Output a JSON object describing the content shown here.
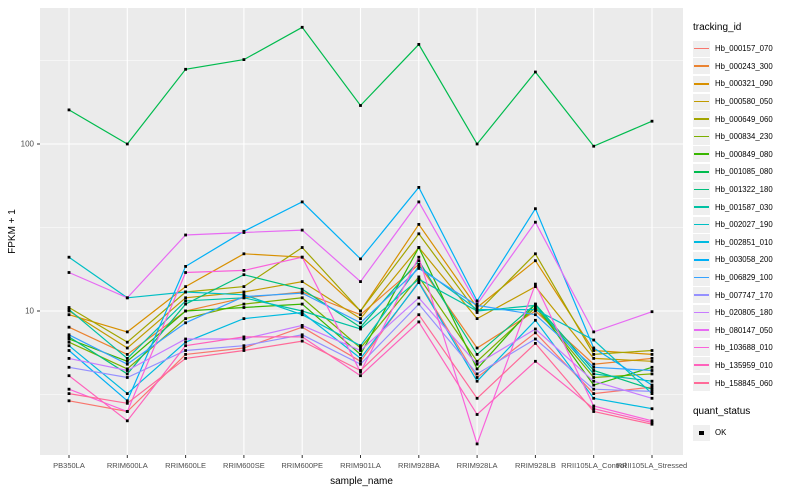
{
  "figure": {
    "background": "#FFFFFF",
    "panel_background": "#EBEBEB",
    "grid_color": "#FFFFFF",
    "point_color": "#000000",
    "axis_text_color": "#4D4D4D",
    "axis_title_color": "#000000",
    "tick_color": "#333333"
  },
  "chart_data": {
    "type": "line",
    "title": "",
    "xlabel": "sample_name",
    "ylabel": "FPKM + 1",
    "y_scale": "log10",
    "y_ticks": [
      100,
      10
    ],
    "y_tick_labels": [
      "100",
      "10"
    ],
    "y_minor_ticks": [
      316.2,
      31.62,
      3.162
    ],
    "ylim": [
      1.38,
      652
    ],
    "grid": true,
    "legend_position": "right",
    "marker": "black-square",
    "categories": [
      "PB350LA",
      "RRIM600LA",
      "RRIM600LE",
      "RRIM600SE",
      "RRIM600PE",
      "RRIM901LA",
      "RRIM928BA",
      "RRIM928LA",
      "RRIM928LB",
      "RRII105LA_Control",
      "RRII105LA_Stressed"
    ],
    "series": [
      {
        "name": "Hb_000157_070",
        "color": "#F8766D",
        "values": [
          2.9,
          2.5,
          5.5,
          6.0,
          8.0,
          5.0,
          15.0,
          4.0,
          7.4,
          3.2,
          3.5
        ]
      },
      {
        "name": "Hb_000243_300",
        "color": "#EA8331",
        "values": [
          8.0,
          5.5,
          10.0,
          12.0,
          13.0,
          9.5,
          19.0,
          6.0,
          10.0,
          4.8,
          5.2
        ]
      },
      {
        "name": "Hb_000321_090",
        "color": "#D89000",
        "values": [
          9.5,
          7.5,
          14.0,
          22.0,
          21.0,
          10.0,
          33.0,
          10.5,
          20.0,
          5.8,
          5.5
        ]
      },
      {
        "name": "Hb_000580_050",
        "color": "#C09B00",
        "values": [
          10.0,
          6.0,
          12.0,
          13.0,
          15.0,
          9.0,
          24.0,
          9.0,
          14.0,
          5.2,
          5.0
        ]
      },
      {
        "name": "Hb_000649_060",
        "color": "#A3A500",
        "values": [
          10.5,
          6.5,
          13.0,
          14.0,
          24.0,
          10.0,
          29.0,
          9.8,
          22.0,
          5.5,
          5.8
        ]
      },
      {
        "name": "Hb_000834_230",
        "color": "#7CAE00",
        "values": [
          6.5,
          4.5,
          9.0,
          11.0,
          12.0,
          6.0,
          16.0,
          5.0,
          10.5,
          4.0,
          4.2
        ]
      },
      {
        "name": "Hb_000849_080",
        "color": "#39B600",
        "values": [
          6.8,
          5.0,
          10.0,
          10.5,
          11.0,
          5.5,
          24.0,
          4.5,
          11.0,
          3.6,
          4.6
        ]
      },
      {
        "name": "Hb_001085_080",
        "color": "#00BB4E",
        "values": [
          160,
          100,
          280,
          320,
          500,
          170,
          395,
          100,
          270,
          97,
          137
        ]
      },
      {
        "name": "Hb_001322_180",
        "color": "#00BF7D",
        "values": [
          7.0,
          4.2,
          11.0,
          16.5,
          13.5,
          8.0,
          20.0,
          5.5,
          11.0,
          4.4,
          3.4
        ]
      },
      {
        "name": "Hb_001587_030",
        "color": "#00C1A3",
        "values": [
          10.2,
          5.2,
          11.5,
          12.0,
          10.0,
          7.8,
          15.5,
          10.0,
          10.8,
          4.2,
          3.8
        ]
      },
      {
        "name": "Hb_002027_190",
        "color": "#00BFC4",
        "values": [
          21.0,
          12.0,
          13.0,
          12.5,
          9.5,
          6.2,
          18.5,
          10.2,
          10.2,
          6.7,
          3.2
        ]
      },
      {
        "name": "Hb_002851_010",
        "color": "#00BAE0",
        "values": [
          6.2,
          3.2,
          6.5,
          9.0,
          9.8,
          5.2,
          14.8,
          3.8,
          8.8,
          3.0,
          2.6
        ]
      },
      {
        "name": "Hb_003058_200",
        "color": "#00B0F6",
        "values": [
          5.8,
          2.9,
          18.5,
          30.0,
          45.0,
          20.5,
          55.0,
          11.5,
          41.0,
          6.0,
          3.6
        ]
      },
      {
        "name": "Hb_006829_100",
        "color": "#35A2FF",
        "values": [
          7.2,
          4.8,
          8.5,
          12.2,
          12.8,
          8.5,
          18.0,
          10.8,
          9.5,
          4.6,
          4.4
        ]
      },
      {
        "name": "Hb_007747_170",
        "color": "#9590FF",
        "values": [
          4.6,
          4.0,
          5.8,
          6.2,
          7.2,
          4.8,
          11.0,
          4.2,
          6.8,
          3.4,
          3.3
        ]
      },
      {
        "name": "Hb_020805_180",
        "color": "#C77CFF",
        "values": [
          5.2,
          4.4,
          6.8,
          6.8,
          8.2,
          5.8,
          12.0,
          4.8,
          7.8,
          3.8,
          3.0
        ]
      },
      {
        "name": "Hb_080147_050",
        "color": "#E76BF3",
        "values": [
          17.0,
          12.0,
          28.5,
          29.5,
          30.5,
          15.0,
          45.0,
          11.0,
          34.0,
          7.5,
          9.9
        ]
      },
      {
        "name": "Hb_103688_010",
        "color": "#FA62DB",
        "values": [
          3.4,
          2.5,
          17.0,
          17.5,
          21.0,
          4.3,
          21.0,
          1.6,
          14.5,
          2.7,
          2.2
        ]
      },
      {
        "name": "Hb_135959_010",
        "color": "#FF62BC",
        "values": [
          4.1,
          2.2,
          6.2,
          7.0,
          7.0,
          4.1,
          8.6,
          2.4,
          5.0,
          2.6,
          2.15
        ]
      },
      {
        "name": "Hb_158845_060",
        "color": "#FF6A98",
        "values": [
          3.2,
          2.8,
          5.2,
          5.8,
          6.6,
          4.4,
          9.5,
          3.0,
          6.4,
          2.5,
          2.1
        ]
      }
    ],
    "legend": {
      "tracking_title": "tracking_id",
      "quant_title": "quant_status",
      "quant_items": [
        {
          "label": "OK",
          "marker": "black-square"
        }
      ]
    }
  }
}
